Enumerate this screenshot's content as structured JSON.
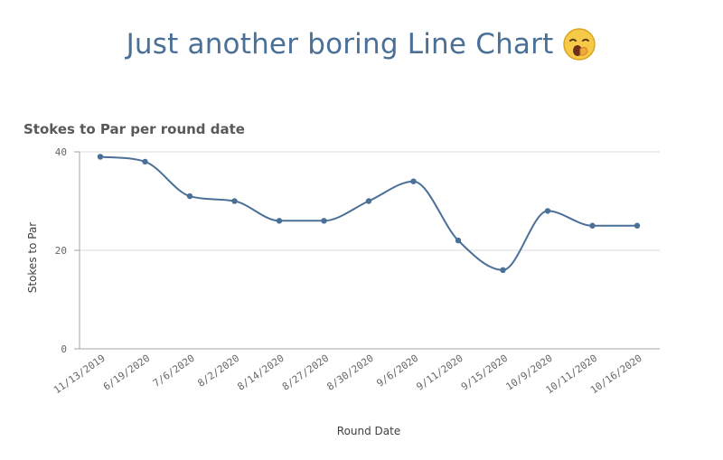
{
  "header": {
    "title": "Just another boring Line Chart",
    "emoji": "yawning-face-icon"
  },
  "chart_data": {
    "type": "line",
    "title": "Stokes to Par per round date",
    "xlabel": "Round Date",
    "ylabel": "Stokes to Par",
    "categories": [
      "11/13/2019",
      "6/19/2020",
      "7/6/2020",
      "8/2/2020",
      "8/14/2020",
      "8/27/2020",
      "8/30/2020",
      "9/6/2020",
      "9/11/2020",
      "9/15/2020",
      "10/9/2020",
      "10/11/2020",
      "10/16/2020"
    ],
    "series": [
      {
        "values": [
          39,
          38,
          31,
          30,
          26,
          26,
          30,
          34,
          22,
          16,
          28,
          25,
          25
        ],
        "color": "#4a7098"
      }
    ],
    "ylim": [
      0,
      40
    ],
    "yticks": [
      0,
      20,
      40
    ],
    "grid": true,
    "line_style": "smooth",
    "colors": {
      "line": "#4a7098",
      "grid": "#d9d9d9",
      "axis": "#a6a6a6"
    }
  }
}
